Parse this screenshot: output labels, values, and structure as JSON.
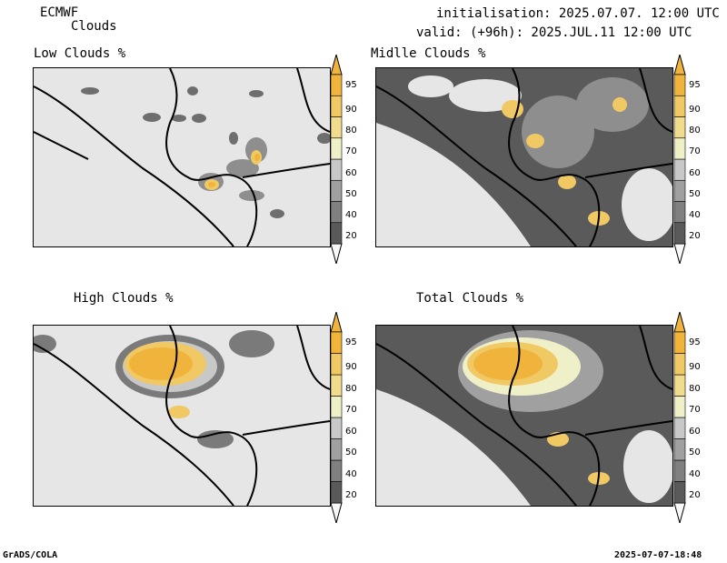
{
  "header": {
    "model": "ECMWF",
    "product": "Clouds",
    "init": "initialisation: 2025.07.07. 12:00 UTC",
    "valid": "valid: (+96h): 2025.JUL.11 12:00 UTC"
  },
  "panels": [
    {
      "title": "Low Clouds %"
    },
    {
      "title": "Midlle Clouds %"
    },
    {
      "title": "High Clouds %"
    },
    {
      "title": "Total Clouds %"
    }
  ],
  "colorbar": {
    "labels": [
      "20",
      "40",
      "50",
      "60",
      "70",
      "80",
      "90",
      "95"
    ],
    "colors": [
      "#5a5a5a",
      "#808080",
      "#a0a0a0",
      "#c8c8c8",
      "#f0f0c8",
      "#f0dc8c",
      "#f0c864",
      "#f0b43c"
    ]
  },
  "footer": {
    "left": "GrADS/COLA",
    "right": "2025-07-07-18:48"
  }
}
